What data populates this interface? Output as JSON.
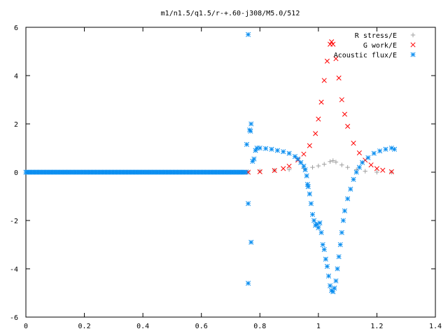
{
  "chart_data": {
    "type": "scatter",
    "title": "m1/n1.5/q1.5/r-+.60-j308/M5.0/512",
    "xlabel": "",
    "ylabel": "",
    "xlim": [
      0,
      1.4
    ],
    "ylim": [
      -6,
      6
    ],
    "x_ticks": [
      "0",
      "0.2",
      "0.4",
      "0.6",
      "0.8",
      "1",
      "1.2",
      "1.4"
    ],
    "y_ticks": [
      "6",
      "4",
      "2",
      "0",
      "-2",
      "-4",
      "-6"
    ],
    "grid": false,
    "legend_position": "top-right",
    "colors": {
      "r_stress": "#a0a0a0",
      "g_work": "#ff0000",
      "acoustic": "#0a8ef0"
    },
    "series": [
      {
        "name": "R stress/E",
        "marker": "plus",
        "color": "#a0a0a0",
        "points": [
          [
            0.76,
            0.02
          ],
          [
            0.8,
            0.05
          ],
          [
            0.85,
            0.08
          ],
          [
            0.9,
            0.11
          ],
          [
            0.95,
            0.16
          ],
          [
            0.98,
            0.2
          ],
          [
            1.0,
            0.26
          ],
          [
            1.02,
            0.33
          ],
          [
            1.04,
            0.44
          ],
          [
            1.05,
            0.48
          ],
          [
            1.06,
            0.42
          ],
          [
            1.08,
            0.3
          ],
          [
            1.1,
            0.2
          ],
          [
            1.13,
            0.1
          ],
          [
            1.16,
            0.04
          ],
          [
            1.2,
            0.0
          ],
          [
            1.25,
            0.0
          ]
        ]
      },
      {
        "name": "G work/E",
        "marker": "cross",
        "color": "#ff0000",
        "points": [
          [
            0.76,
            0.0
          ],
          [
            0.8,
            0.02
          ],
          [
            0.85,
            0.07
          ],
          [
            0.88,
            0.15
          ],
          [
            0.9,
            0.25
          ],
          [
            0.93,
            0.5
          ],
          [
            0.95,
            0.75
          ],
          [
            0.97,
            1.1
          ],
          [
            0.99,
            1.6
          ],
          [
            1.0,
            2.2
          ],
          [
            1.01,
            2.9
          ],
          [
            1.02,
            3.8
          ],
          [
            1.03,
            4.6
          ],
          [
            1.04,
            5.3
          ],
          [
            1.045,
            5.4
          ],
          [
            1.05,
            5.3
          ],
          [
            1.06,
            4.7
          ],
          [
            1.07,
            3.9
          ],
          [
            1.08,
            3.0
          ],
          [
            1.09,
            2.4
          ],
          [
            1.1,
            1.9
          ],
          [
            1.12,
            1.2
          ],
          [
            1.14,
            0.8
          ],
          [
            1.16,
            0.5
          ],
          [
            1.18,
            0.3
          ],
          [
            1.2,
            0.15
          ],
          [
            1.22,
            0.08
          ],
          [
            1.25,
            0.02
          ]
        ]
      },
      {
        "name": "Acoustic flux/E",
        "marker": "star",
        "color": "#0a8ef0",
        "points": [
          [
            0.755,
            1.15
          ],
          [
            0.76,
            5.7
          ],
          [
            0.76,
            -1.3
          ],
          [
            0.76,
            -4.6
          ],
          [
            0.765,
            1.75
          ],
          [
            0.768,
            1.7
          ],
          [
            0.77,
            2.0
          ],
          [
            0.77,
            -2.9
          ],
          [
            0.775,
            0.45
          ],
          [
            0.78,
            0.55
          ],
          [
            0.785,
            0.9
          ],
          [
            0.79,
            1.0
          ],
          [
            0.8,
            1.0
          ],
          [
            0.82,
            0.98
          ],
          [
            0.84,
            0.95
          ],
          [
            0.86,
            0.9
          ],
          [
            0.88,
            0.85
          ],
          [
            0.9,
            0.78
          ],
          [
            0.92,
            0.65
          ],
          [
            0.93,
            0.55
          ],
          [
            0.94,
            0.4
          ],
          [
            0.95,
            0.25
          ],
          [
            0.955,
            0.1
          ],
          [
            0.96,
            -0.15
          ],
          [
            0.963,
            -0.5
          ],
          [
            0.965,
            -0.6
          ],
          [
            0.97,
            -0.9
          ],
          [
            0.975,
            -1.3
          ],
          [
            0.98,
            -1.75
          ],
          [
            0.985,
            -2.0
          ],
          [
            0.99,
            -2.2
          ],
          [
            0.995,
            -2.15
          ],
          [
            1.0,
            -2.3
          ],
          [
            1.005,
            -2.1
          ],
          [
            1.01,
            -2.5
          ],
          [
            1.015,
            -3.0
          ],
          [
            1.02,
            -3.2
          ],
          [
            1.025,
            -3.6
          ],
          [
            1.03,
            -3.9
          ],
          [
            1.035,
            -4.3
          ],
          [
            1.04,
            -4.7
          ],
          [
            1.045,
            -4.9
          ],
          [
            1.05,
            -4.95
          ],
          [
            1.055,
            -4.8
          ],
          [
            1.06,
            -4.5
          ],
          [
            1.065,
            -4.0
          ],
          [
            1.07,
            -3.5
          ],
          [
            1.075,
            -3.0
          ],
          [
            1.08,
            -2.5
          ],
          [
            1.085,
            -2.0
          ],
          [
            1.09,
            -1.6
          ],
          [
            1.1,
            -1.1
          ],
          [
            1.11,
            -0.7
          ],
          [
            1.12,
            -0.3
          ],
          [
            1.13,
            0.0
          ],
          [
            1.14,
            0.2
          ],
          [
            1.15,
            0.4
          ],
          [
            1.17,
            0.6
          ],
          [
            1.19,
            0.78
          ],
          [
            1.21,
            0.88
          ],
          [
            1.23,
            0.95
          ],
          [
            1.25,
            1.0
          ],
          [
            1.26,
            0.95
          ]
        ]
      }
    ]
  }
}
